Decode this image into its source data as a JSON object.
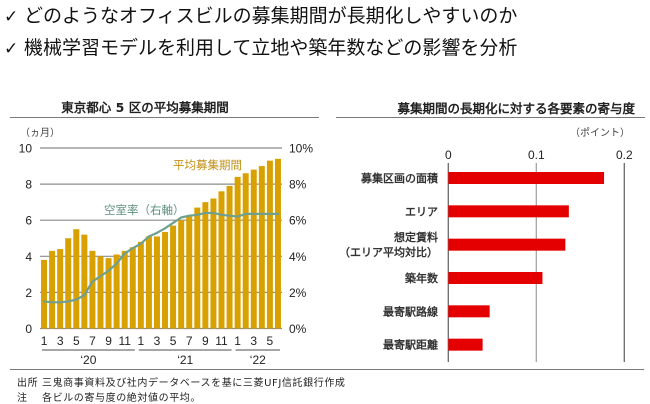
{
  "headline": {
    "bullets": [
      {
        "icon": "check-icon",
        "glyph": "✓",
        "text": "どのようなオフィスビルの募集期間が長期化しやすいのか"
      },
      {
        "icon": "check-icon",
        "glyph": "✓",
        "text": "機械学習モデルを利用して立地や築年数などの影響を分析"
      }
    ]
  },
  "colors": {
    "bar": "#d9a100",
    "line": "#6f9f8f",
    "bar_label": "#c29016",
    "line_label": "#5e8f80",
    "contrib_bar": "#e50000",
    "grid": "#8c8c8c"
  },
  "chart_data": [
    {
      "type": "bar",
      "title": "東京都心 5 区の平均募集期間",
      "ylabel": "（ヵ月）",
      "x": [
        1,
        2,
        3,
        4,
        5,
        6,
        7,
        8,
        9,
        10,
        11,
        12,
        1,
        2,
        3,
        4,
        5,
        6,
        7,
        8,
        9,
        10,
        11,
        12,
        1,
        2,
        3,
        4,
        5,
        6
      ],
      "year_groups": [
        {
          "label": "‘20",
          "count": 12
        },
        {
          "label": "‘21",
          "count": 12
        },
        {
          "label": "‘22",
          "count": 6
        }
      ],
      "series": [
        {
          "name": "平均募集期間",
          "type": "bar",
          "axis": "left",
          "values": [
            3.8,
            4.3,
            4.4,
            5.0,
            5.5,
            5.2,
            4.3,
            4.0,
            3.9,
            4.1,
            4.3,
            4.5,
            4.8,
            5.1,
            5.1,
            5.35,
            5.7,
            6.0,
            6.2,
            6.7,
            7.0,
            7.2,
            7.6,
            7.9,
            8.4,
            8.6,
            8.8,
            9.0,
            9.3,
            9.4
          ]
        },
        {
          "name": "空室率（右軸）",
          "type": "line",
          "axis": "right",
          "values": [
            1.5,
            1.45,
            1.45,
            1.5,
            1.6,
            1.85,
            2.6,
            2.9,
            3.2,
            3.6,
            4.15,
            4.45,
            4.7,
            5.1,
            5.3,
            5.55,
            5.85,
            6.15,
            6.25,
            6.3,
            6.4,
            6.4,
            6.3,
            6.25,
            6.2,
            6.35,
            6.35,
            6.35,
            6.35,
            6.35
          ]
        }
      ],
      "ylim": [
        0,
        10
      ],
      "yticks": [
        0,
        2,
        4,
        6,
        8,
        10
      ],
      "ytick_labels": [
        "0",
        "2",
        "4",
        "6",
        "8",
        "10"
      ],
      "y2lim": [
        0,
        10
      ],
      "y2ticks": [
        0,
        2,
        4,
        6,
        8,
        10
      ],
      "y2tick_labels": [
        "0%",
        "2%",
        "4%",
        "6%",
        "8%",
        "10%"
      ],
      "grid": true
    },
    {
      "type": "bar",
      "orientation": "horizontal",
      "title": "募集期間の長期化に対する各要素の寄与度",
      "unit": "（ポイント）",
      "categories": [
        [
          "募集区画の面積"
        ],
        [
          "エリア"
        ],
        [
          "想定賃料",
          "（エリア平均対比）"
        ],
        [
          "築年数"
        ],
        [
          "最寄駅路線"
        ],
        [
          "最寄駅距離"
        ]
      ],
      "values": [
        0.177,
        0.137,
        0.133,
        0.107,
        0.047,
        0.039
      ],
      "xlim": [
        0,
        0.2
      ],
      "xticks": [
        0,
        0.1,
        0.2
      ],
      "xtick_labels": [
        "0",
        "0.1",
        "0.2"
      ]
    }
  ],
  "footer": {
    "source_label": "出所",
    "source_text": "三鬼商事資料及び社内データベースを基に三菱UFJ信託銀行作成",
    "note_label": "注",
    "note_text": "各ビルの寄与度の絶対値の平均。"
  }
}
